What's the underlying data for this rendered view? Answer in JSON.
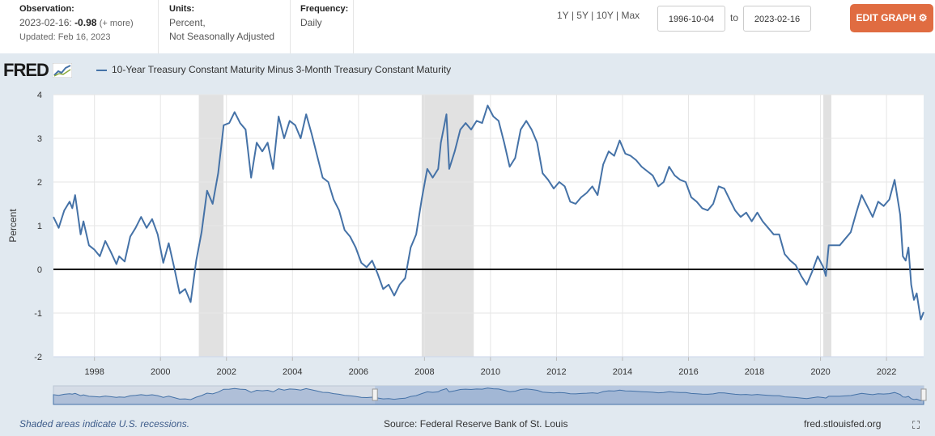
{
  "header": {
    "observation_label": "Observation:",
    "observation_date": "2023-02-16:",
    "observation_value": "-0.98",
    "observation_more": "(+ more)",
    "updated": "Updated: Feb 16, 2023",
    "units_label": "Units:",
    "units_line1": "Percent,",
    "units_line2": "Not Seasonally Adjusted",
    "frequency_label": "Frequency:",
    "frequency_value": "Daily",
    "range_1y": "1Y",
    "range_5y": "5Y",
    "range_10y": "10Y",
    "range_max": "Max",
    "range_sep": "|",
    "start_date": "1996-10-04",
    "to_label": "to",
    "end_date": "2023-02-16",
    "edit_button": "EDIT GRAPH",
    "gear_icon": "⚙"
  },
  "logo_text": "FRED",
  "footer": {
    "recession_note": "Shaded areas indicate U.S. recessions.",
    "source": "Source: Federal Reserve Bank of St. Louis",
    "url": "fred.stlouisfed.org",
    "fullscreen_icon": "⛶"
  },
  "colors": {
    "line": "#4572a7",
    "recession": "#e1e1e1",
    "edit_button": "#e06c41",
    "chart_background": "#e1e9f0"
  },
  "chart_data": {
    "type": "line",
    "title": "",
    "ylabel": "Percent",
    "xlabel": "",
    "ylim": [
      -2,
      4
    ],
    "xlim": [
      "1996-10-04",
      "2023-02-16"
    ],
    "yticks": [
      -2,
      -1,
      0,
      1,
      2,
      3,
      4
    ],
    "xticks": [
      1998,
      2000,
      2002,
      2004,
      2006,
      2008,
      2010,
      2012,
      2014,
      2016,
      2018,
      2020,
      2022
    ],
    "grid": true,
    "zero_line": true,
    "legend": "top-left",
    "recessions": [
      [
        "2001-03-01",
        "2001-11-30"
      ],
      [
        "2007-12-01",
        "2009-06-30"
      ],
      [
        "2020-02-01",
        "2020-04-30"
      ]
    ],
    "series": [
      {
        "name": "10-Year Treasury Constant Maturity Minus 3-Month Treasury Constant Maturity",
        "points": [
          [
            "1996-10-04",
            1.2
          ],
          [
            "1996-12-01",
            0.95
          ],
          [
            "1997-02-01",
            1.35
          ],
          [
            "1997-04-01",
            1.55
          ],
          [
            "1997-05-01",
            1.4
          ],
          [
            "1997-06-01",
            1.7
          ],
          [
            "1997-08-01",
            0.8
          ],
          [
            "1997-09-01",
            1.1
          ],
          [
            "1997-11-01",
            0.55
          ],
          [
            "1998-01-01",
            0.45
          ],
          [
            "1998-03-01",
            0.3
          ],
          [
            "1998-05-01",
            0.65
          ],
          [
            "1998-07-01",
            0.4
          ],
          [
            "1998-09-01",
            0.12
          ],
          [
            "1998-10-01",
            0.3
          ],
          [
            "1998-12-01",
            0.18
          ],
          [
            "1999-02-01",
            0.75
          ],
          [
            "1999-04-01",
            0.95
          ],
          [
            "1999-06-01",
            1.2
          ],
          [
            "1999-08-01",
            0.95
          ],
          [
            "1999-10-01",
            1.15
          ],
          [
            "1999-12-01",
            0.8
          ],
          [
            "2000-02-01",
            0.15
          ],
          [
            "2000-04-01",
            0.6
          ],
          [
            "2000-06-01",
            0.05
          ],
          [
            "2000-08-01",
            -0.55
          ],
          [
            "2000-10-01",
            -0.45
          ],
          [
            "2000-12-01",
            -0.75
          ],
          [
            "2001-02-01",
            0.2
          ],
          [
            "2001-04-01",
            0.85
          ],
          [
            "2001-06-01",
            1.8
          ],
          [
            "2001-08-01",
            1.5
          ],
          [
            "2001-10-01",
            2.2
          ],
          [
            "2001-12-01",
            3.3
          ],
          [
            "2002-02-01",
            3.35
          ],
          [
            "2002-04-01",
            3.6
          ],
          [
            "2002-06-01",
            3.35
          ],
          [
            "2002-08-01",
            3.2
          ],
          [
            "2002-10-01",
            2.1
          ],
          [
            "2002-12-01",
            2.9
          ],
          [
            "2003-02-01",
            2.7
          ],
          [
            "2003-04-01",
            2.9
          ],
          [
            "2003-06-01",
            2.3
          ],
          [
            "2003-08-01",
            3.5
          ],
          [
            "2003-10-01",
            3.0
          ],
          [
            "2003-12-01",
            3.4
          ],
          [
            "2004-02-01",
            3.3
          ],
          [
            "2004-04-01",
            3.0
          ],
          [
            "2004-06-01",
            3.55
          ],
          [
            "2004-08-01",
            3.1
          ],
          [
            "2004-10-01",
            2.6
          ],
          [
            "2004-12-01",
            2.1
          ],
          [
            "2005-02-01",
            2.0
          ],
          [
            "2005-04-01",
            1.6
          ],
          [
            "2005-06-01",
            1.35
          ],
          [
            "2005-08-01",
            0.9
          ],
          [
            "2005-10-01",
            0.75
          ],
          [
            "2005-12-01",
            0.5
          ],
          [
            "2006-02-01",
            0.15
          ],
          [
            "2006-04-01",
            0.05
          ],
          [
            "2006-06-01",
            0.2
          ],
          [
            "2006-08-01",
            -0.1
          ],
          [
            "2006-10-01",
            -0.45
          ],
          [
            "2006-12-01",
            -0.35
          ],
          [
            "2007-02-01",
            -0.6
          ],
          [
            "2007-04-01",
            -0.35
          ],
          [
            "2007-06-01",
            -0.2
          ],
          [
            "2007-08-01",
            0.5
          ],
          [
            "2007-10-01",
            0.8
          ],
          [
            "2007-12-01",
            1.6
          ],
          [
            "2008-02-01",
            2.3
          ],
          [
            "2008-04-01",
            2.1
          ],
          [
            "2008-06-01",
            2.3
          ],
          [
            "2008-07-01",
            2.9
          ],
          [
            "2008-09-01",
            3.55
          ],
          [
            "2008-10-01",
            2.3
          ],
          [
            "2008-12-01",
            2.7
          ],
          [
            "2009-02-01",
            3.2
          ],
          [
            "2009-04-01",
            3.35
          ],
          [
            "2009-06-01",
            3.2
          ],
          [
            "2009-08-01",
            3.4
          ],
          [
            "2009-10-01",
            3.35
          ],
          [
            "2009-12-01",
            3.75
          ],
          [
            "2010-02-01",
            3.5
          ],
          [
            "2010-04-01",
            3.4
          ],
          [
            "2010-06-01",
            2.9
          ],
          [
            "2010-08-01",
            2.35
          ],
          [
            "2010-10-01",
            2.55
          ],
          [
            "2010-12-01",
            3.2
          ],
          [
            "2011-02-01",
            3.4
          ],
          [
            "2011-04-01",
            3.2
          ],
          [
            "2011-06-01",
            2.9
          ],
          [
            "2011-08-01",
            2.2
          ],
          [
            "2011-10-01",
            2.05
          ],
          [
            "2011-12-01",
            1.85
          ],
          [
            "2012-02-01",
            2.0
          ],
          [
            "2012-04-01",
            1.9
          ],
          [
            "2012-06-01",
            1.55
          ],
          [
            "2012-08-01",
            1.5
          ],
          [
            "2012-10-01",
            1.65
          ],
          [
            "2012-12-01",
            1.75
          ],
          [
            "2013-02-01",
            1.9
          ],
          [
            "2013-04-01",
            1.7
          ],
          [
            "2013-06-01",
            2.4
          ],
          [
            "2013-08-01",
            2.7
          ],
          [
            "2013-10-01",
            2.6
          ],
          [
            "2013-12-01",
            2.95
          ],
          [
            "2014-02-01",
            2.65
          ],
          [
            "2014-04-01",
            2.6
          ],
          [
            "2014-06-01",
            2.5
          ],
          [
            "2014-08-01",
            2.35
          ],
          [
            "2014-10-01",
            2.25
          ],
          [
            "2014-12-01",
            2.15
          ],
          [
            "2015-02-01",
            1.9
          ],
          [
            "2015-04-01",
            2.0
          ],
          [
            "2015-06-01",
            2.35
          ],
          [
            "2015-08-01",
            2.15
          ],
          [
            "2015-10-01",
            2.05
          ],
          [
            "2015-12-01",
            2.0
          ],
          [
            "2016-02-01",
            1.65
          ],
          [
            "2016-04-01",
            1.55
          ],
          [
            "2016-06-01",
            1.4
          ],
          [
            "2016-08-01",
            1.35
          ],
          [
            "2016-10-01",
            1.5
          ],
          [
            "2016-12-01",
            1.9
          ],
          [
            "2017-02-01",
            1.85
          ],
          [
            "2017-04-01",
            1.6
          ],
          [
            "2017-06-01",
            1.35
          ],
          [
            "2017-08-01",
            1.2
          ],
          [
            "2017-10-01",
            1.3
          ],
          [
            "2017-12-01",
            1.1
          ],
          [
            "2018-02-01",
            1.3
          ],
          [
            "2018-04-01",
            1.1
          ],
          [
            "2018-06-01",
            0.95
          ],
          [
            "2018-08-01",
            0.8
          ],
          [
            "2018-10-01",
            0.8
          ],
          [
            "2018-12-01",
            0.35
          ],
          [
            "2019-02-01",
            0.2
          ],
          [
            "2019-04-01",
            0.1
          ],
          [
            "2019-06-01",
            -0.15
          ],
          [
            "2019-08-01",
            -0.35
          ],
          [
            "2019-10-01",
            -0.05
          ],
          [
            "2019-12-01",
            0.3
          ],
          [
            "2020-02-01",
            0.05
          ],
          [
            "2020-03-01",
            -0.15
          ],
          [
            "2020-04-01",
            0.55
          ],
          [
            "2020-06-01",
            0.55
          ],
          [
            "2020-08-01",
            0.55
          ],
          [
            "2020-10-01",
            0.7
          ],
          [
            "2020-12-01",
            0.85
          ],
          [
            "2021-02-01",
            1.3
          ],
          [
            "2021-04-01",
            1.7
          ],
          [
            "2021-06-01",
            1.45
          ],
          [
            "2021-08-01",
            1.2
          ],
          [
            "2021-10-01",
            1.55
          ],
          [
            "2021-12-01",
            1.45
          ],
          [
            "2022-02-01",
            1.6
          ],
          [
            "2022-04-01",
            2.05
          ],
          [
            "2022-06-01",
            1.25
          ],
          [
            "2022-07-01",
            0.3
          ],
          [
            "2022-08-01",
            0.2
          ],
          [
            "2022-09-01",
            0.5
          ],
          [
            "2022-10-01",
            -0.35
          ],
          [
            "2022-11-01",
            -0.7
          ],
          [
            "2022-12-01",
            -0.55
          ],
          [
            "2023-01-15",
            -1.15
          ],
          [
            "2023-02-16",
            -0.98
          ]
        ]
      }
    ]
  }
}
